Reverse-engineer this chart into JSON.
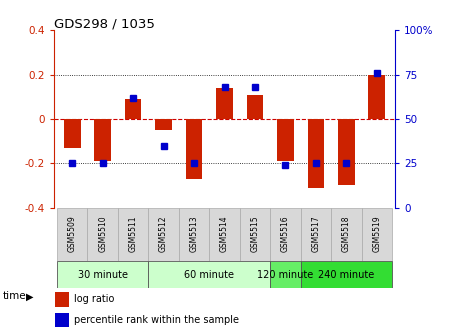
{
  "title": "GDS298 / 1035",
  "samples": [
    "GSM5509",
    "GSM5510",
    "GSM5511",
    "GSM5512",
    "GSM5513",
    "GSM5514",
    "GSM5515",
    "GSM5516",
    "GSM5517",
    "GSM5518",
    "GSM5519"
  ],
  "log_ratios": [
    -0.13,
    -0.19,
    0.09,
    -0.05,
    -0.27,
    0.14,
    0.11,
    -0.19,
    -0.31,
    -0.3,
    0.2
  ],
  "percentile_ranks": [
    25,
    25,
    62,
    35,
    25,
    68,
    68,
    24,
    25,
    25,
    76
  ],
  "group_spans": [
    {
      "label": "30 minute",
      "start": 0,
      "end": 2,
      "color": "#ccffcc"
    },
    {
      "label": "60 minute",
      "start": 3,
      "end": 6,
      "color": "#ccffcc"
    },
    {
      "label": "120 minute",
      "start": 7,
      "end": 7,
      "color": "#66ee66"
    },
    {
      "label": "240 minute",
      "start": 8,
      "end": 10,
      "color": "#33dd33"
    }
  ],
  "ylim_left": [
    -0.4,
    0.4
  ],
  "ylim_right": [
    0,
    100
  ],
  "yticks_left": [
    -0.4,
    -0.2,
    0.0,
    0.2,
    0.4
  ],
  "yticks_right": [
    0,
    25,
    50,
    75,
    100
  ],
  "ytick_labels_right": [
    "0",
    "25",
    "50",
    "75",
    "100%"
  ],
  "bar_color": "#cc2200",
  "dot_color": "#0000cc",
  "bg_color": "#ffffff",
  "zero_line_color": "#cc0000",
  "time_label": "time",
  "legend_log_ratio": "log ratio",
  "legend_percentile": "percentile rank within the sample",
  "sample_cell_color": "#d8d8d8",
  "sample_cell_edge": "#aaaaaa"
}
